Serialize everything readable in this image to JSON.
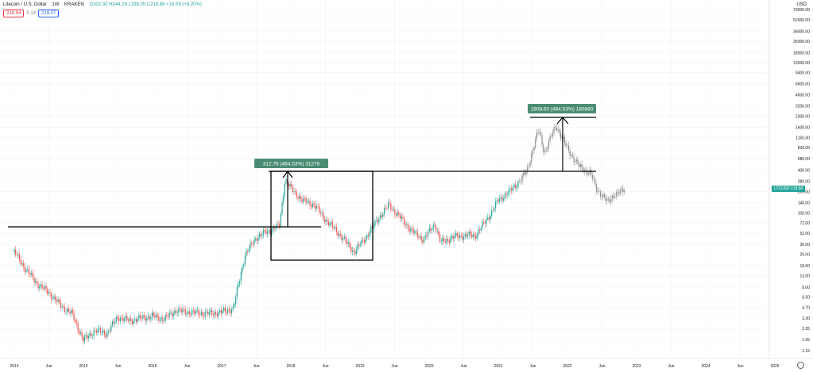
{
  "header": {
    "symbol": "Litecoin / U.S. Dollar",
    "interval": "1W",
    "exchange": "KRAKEN",
    "ohlc": "O202.30 H244.28 L198.05 C218.88 +16.59 (+8.20%)",
    "sell_price": "218.94",
    "spread": "0.13",
    "buy_price": "219.07"
  },
  "price_axis": {
    "currency": "USD",
    "ticks": [
      "73000.00",
      "52000.00",
      "36000.00",
      "26000.00",
      "18000.00",
      "13000.00",
      "9400.00",
      "6600.00",
      "4600.00",
      "3200.00",
      "2300.00",
      "1600.00",
      "1150.00",
      "830.00",
      "580.00",
      "400.00",
      "280.00",
      "200.00",
      "140.00",
      "100.00",
      "72.00",
      "52.00",
      "36.00",
      "26.00",
      "18.00",
      "13.00",
      "9.00",
      "6.50",
      "4.70",
      "3.30",
      "2.35",
      "1.65",
      "1.15"
    ],
    "last_label": "LTCUSD",
    "last_price": "218.88",
    "last_countdown": "6d 4h"
  },
  "time_axis": {
    "ticks": [
      "2014",
      "Jun",
      "2015",
      "Jun",
      "2016",
      "Jun",
      "2017",
      "Jun",
      "2018",
      "Jun",
      "2019",
      "Jun",
      "2020",
      "Jun",
      "2021",
      "Jun",
      "2022",
      "Jun",
      "2023",
      "Jun",
      "2024",
      "Jun",
      "2025"
    ]
  },
  "annotations": {
    "measure_1": "312.76 (484.53%) 31276",
    "measure_2": "1808.60 (484.53%) 180860"
  },
  "colors": {
    "up": "#26a69a",
    "down": "#ef5350",
    "projection": "#8c8c8c",
    "label_bg": "#4a8c73"
  },
  "chart_data": {
    "type": "candlestick",
    "scale": "log",
    "series": [
      {
        "name": "LTCUSD",
        "points": [
          [
            "2014-01",
            28
          ],
          [
            "2014-03",
            16
          ],
          [
            "2014-05",
            10
          ],
          [
            "2014-07",
            7.5
          ],
          [
            "2014-09",
            5
          ],
          [
            "2014-11",
            3.8
          ],
          [
            "2015-01",
            1.6
          ],
          [
            "2015-03",
            2.2
          ],
          [
            "2015-05",
            2.0
          ],
          [
            "2015-07",
            3.4
          ],
          [
            "2015-09",
            3.0
          ],
          [
            "2015-11",
            3.3
          ],
          [
            "2016-01",
            3.5
          ],
          [
            "2016-03",
            3.2
          ],
          [
            "2016-05",
            4.2
          ],
          [
            "2016-07",
            4.0
          ],
          [
            "2016-09",
            3.9
          ],
          [
            "2016-11",
            3.8
          ],
          [
            "2017-01",
            4.0
          ],
          [
            "2017-03",
            4.5
          ],
          [
            "2017-05",
            25
          ],
          [
            "2017-07",
            45
          ],
          [
            "2017-09",
            55
          ],
          [
            "2017-11",
            65
          ],
          [
            "2017-12",
            300
          ],
          [
            "2018-01",
            220
          ],
          [
            "2018-03",
            150
          ],
          [
            "2018-05",
            130
          ],
          [
            "2018-07",
            80
          ],
          [
            "2018-09",
            55
          ],
          [
            "2018-11",
            35
          ],
          [
            "2018-12",
            28
          ],
          [
            "2019-02",
            45
          ],
          [
            "2019-04",
            80
          ],
          [
            "2019-06",
            130
          ],
          [
            "2019-08",
            85
          ],
          [
            "2019-10",
            55
          ],
          [
            "2019-12",
            42
          ],
          [
            "2020-02",
            70
          ],
          [
            "2020-03",
            38
          ],
          [
            "2020-05",
            45
          ],
          [
            "2020-07",
            48
          ],
          [
            "2020-09",
            48
          ],
          [
            "2020-11",
            80
          ],
          [
            "2021-01",
            150
          ],
          [
            "2021-03",
            200
          ],
          [
            "2021-05",
            300
          ],
          [
            "2021-06",
            400
          ],
          [
            "2021-08",
            1500
          ],
          [
            "2021-09",
            700
          ],
          [
            "2021-11",
            1700
          ],
          [
            "2022-01",
            800
          ],
          [
            "2022-03",
            450
          ],
          [
            "2022-05",
            360
          ],
          [
            "2022-06",
            220
          ],
          [
            "2022-08",
            140
          ],
          [
            "2022-09",
            180
          ],
          [
            "2022-10",
            190
          ],
          [
            "2022-11",
            218.88
          ]
        ]
      }
    ]
  }
}
